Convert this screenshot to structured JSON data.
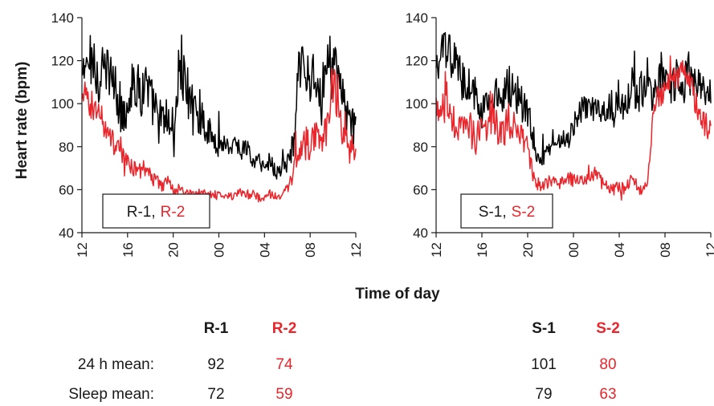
{
  "chart_data": [
    {
      "type": "line",
      "panel": "R",
      "ylabel": "Heart rate (bpm)",
      "xlabel": "Time of day",
      "ylim": [
        40,
        140
      ],
      "yticks": [
        40,
        60,
        80,
        100,
        120,
        140
      ],
      "xticks": [
        "12",
        "16",
        "20",
        "00",
        "04",
        "08",
        "12"
      ],
      "xlim_hours": [
        0,
        24
      ],
      "legend": {
        "placement": "bottom-left",
        "label_a": "R-1",
        "sep": ",",
        "label_b": "R-2"
      },
      "series": [
        {
          "name": "R-1",
          "color": "#000000",
          "x": [
            0,
            0.5,
            1,
            1.5,
            2,
            2.5,
            3,
            3.5,
            4,
            4.5,
            5,
            5.5,
            6,
            6.5,
            7,
            7.5,
            8,
            8.5,
            9,
            9.5,
            10,
            10.5,
            11,
            11.5,
            12,
            12.5,
            13,
            13.5,
            14,
            14.5,
            15,
            15.5,
            16,
            16.5,
            17,
            17.5,
            18,
            18.5,
            19,
            19.5,
            20,
            20.5,
            21,
            21.5,
            22,
            22.5,
            23,
            23.5,
            24
          ],
          "y": [
            112,
            118,
            122,
            110,
            116,
            114,
            104,
            96,
            100,
            112,
            104,
            110,
            102,
            96,
            90,
            94,
            84,
            118,
            112,
            96,
            100,
            94,
            88,
            84,
            80,
            82,
            80,
            82,
            78,
            80,
            72,
            74,
            70,
            74,
            68,
            70,
            72,
            80,
            112,
            120,
            110,
            114,
            106,
            118,
            124,
            108,
            100,
            92,
            88
          ],
          "spread": [
            10,
            12,
            14,
            12,
            12,
            10,
            14,
            12,
            12,
            12,
            14,
            14,
            12,
            12,
            12,
            10,
            14,
            18,
            16,
            14,
            12,
            10,
            8,
            6,
            5,
            5,
            5,
            4,
            4,
            5,
            4,
            4,
            4,
            5,
            4,
            4,
            5,
            10,
            14,
            12,
            10,
            12,
            10,
            12,
            12,
            10,
            10,
            10,
            8
          ]
        },
        {
          "name": "R-2",
          "color": "#e8262c",
          "x": [
            0,
            0.5,
            1,
            1.5,
            2,
            2.5,
            3,
            3.5,
            4,
            4.5,
            5,
            5.5,
            6,
            6.5,
            7,
            7.5,
            8,
            8.5,
            9,
            9.5,
            10,
            10.5,
            11,
            11.5,
            12,
            12.5,
            13,
            13.5,
            14,
            14.5,
            15,
            15.5,
            16,
            16.5,
            17,
            17.5,
            18,
            18.5,
            19,
            19.5,
            20,
            20.5,
            21,
            21.5,
            22,
            22.5,
            23,
            23.5,
            24
          ],
          "y": [
            100,
            104,
            98,
            96,
            90,
            84,
            80,
            76,
            72,
            70,
            68,
            70,
            66,
            64,
            62,
            64,
            60,
            60,
            59,
            58,
            58,
            59,
            58,
            58,
            57,
            58,
            57,
            58,
            58,
            57,
            58,
            56,
            57,
            58,
            57,
            58,
            60,
            66,
            78,
            84,
            80,
            86,
            82,
            92,
            110,
            96,
            84,
            80,
            78
          ],
          "spread": [
            8,
            8,
            8,
            8,
            6,
            6,
            5,
            5,
            4,
            4,
            4,
            4,
            4,
            3,
            3,
            3,
            3,
            3,
            2,
            2,
            2,
            2,
            2,
            2,
            2,
            2,
            2,
            2,
            2,
            2,
            2,
            2,
            2,
            2,
            2,
            2,
            3,
            5,
            8,
            8,
            8,
            8,
            8,
            10,
            10,
            10,
            8,
            8,
            6
          ]
        }
      ]
    },
    {
      "type": "line",
      "panel": "S",
      "ylim": [
        40,
        140
      ],
      "yticks": [
        40,
        60,
        80,
        100,
        120,
        140
      ],
      "xticks": [
        "12",
        "16",
        "20",
        "00",
        "04",
        "08",
        "12"
      ],
      "xlim_hours": [
        0,
        24
      ],
      "legend": {
        "placement": "bottom-left",
        "label_a": "S-1",
        "sep": ",",
        "label_b": "S-2"
      },
      "series": [
        {
          "name": "S-1",
          "color": "#000000",
          "x": [
            0,
            0.5,
            1,
            1.5,
            2,
            2.5,
            3,
            3.5,
            4,
            4.5,
            5,
            5.5,
            6,
            6.5,
            7,
            7.5,
            8,
            8.5,
            9,
            9.5,
            10,
            10.5,
            11,
            11.5,
            12,
            12.5,
            13,
            13.5,
            14,
            14.5,
            15,
            15.5,
            16,
            16.5,
            17,
            17.5,
            18,
            18.5,
            19,
            19.5,
            20,
            20.5,
            21,
            21.5,
            22,
            22.5,
            23,
            23.5,
            24
          ],
          "y": [
            114,
            122,
            126,
            120,
            116,
            108,
            112,
            100,
            104,
            96,
            104,
            100,
            104,
            110,
            106,
            98,
            96,
            84,
            72,
            76,
            80,
            82,
            84,
            82,
            90,
            96,
            98,
            96,
            100,
            96,
            98,
            100,
            104,
            98,
            110,
            104,
            106,
            112,
            102,
            110,
            114,
            108,
            112,
            104,
            116,
            108,
            112,
            106,
            108
          ],
          "spread": [
            8,
            10,
            10,
            10,
            10,
            10,
            12,
            10,
            10,
            10,
            10,
            10,
            10,
            12,
            10,
            10,
            8,
            6,
            4,
            4,
            4,
            4,
            4,
            4,
            5,
            6,
            6,
            6,
            6,
            6,
            6,
            8,
            8,
            8,
            10,
            8,
            10,
            10,
            8,
            10,
            10,
            8,
            10,
            8,
            10,
            8,
            10,
            8,
            8
          ]
        },
        {
          "name": "S-2",
          "color": "#e8262c",
          "x": [
            0,
            0.5,
            1,
            1.5,
            2,
            2.5,
            3,
            3.5,
            4,
            4.5,
            5,
            5.5,
            6,
            6.5,
            7,
            7.5,
            8,
            8.5,
            9,
            9.5,
            10,
            10.5,
            11,
            11.5,
            12,
            12.5,
            13,
            13.5,
            14,
            14.5,
            15,
            15.5,
            16,
            16.5,
            17,
            17.5,
            18,
            18.5,
            19,
            19.5,
            20,
            20.5,
            21,
            21.5,
            22,
            22.5,
            23,
            23.5,
            24
          ],
          "y": [
            100,
            98,
            96,
            92,
            90,
            86,
            88,
            84,
            86,
            88,
            90,
            88,
            86,
            88,
            92,
            86,
            80,
            66,
            62,
            62,
            64,
            62,
            64,
            66,
            64,
            66,
            64,
            66,
            68,
            64,
            62,
            60,
            62,
            60,
            64,
            62,
            60,
            62,
            100,
            104,
            106,
            112,
            110,
            116,
            114,
            104,
            96,
            90,
            88
          ],
          "spread": [
            8,
            8,
            8,
            8,
            8,
            8,
            8,
            8,
            8,
            8,
            8,
            8,
            8,
            8,
            8,
            8,
            6,
            4,
            3,
            3,
            3,
            3,
            3,
            3,
            3,
            3,
            3,
            3,
            3,
            3,
            3,
            3,
            3,
            3,
            3,
            3,
            3,
            3,
            6,
            6,
            6,
            6,
            6,
            6,
            6,
            6,
            6,
            6,
            6
          ]
        }
      ]
    }
  ],
  "shared_xlabel": "Time of day",
  "summary": {
    "row1_label": "24 h mean:",
    "row2_label": "Sleep mean:",
    "R": {
      "h1": "R-1",
      "h2": "R-2",
      "mean_1": "92",
      "mean_2": "74",
      "sleep_1": "72",
      "sleep_2": "59"
    },
    "S": {
      "h1": "S-1",
      "h2": "S-2",
      "mean_1": "101",
      "mean_2": "80",
      "sleep_1": "79",
      "sleep_2": "63"
    }
  },
  "colors": {
    "series_1": "#000000",
    "series_2": "#e8262c"
  }
}
